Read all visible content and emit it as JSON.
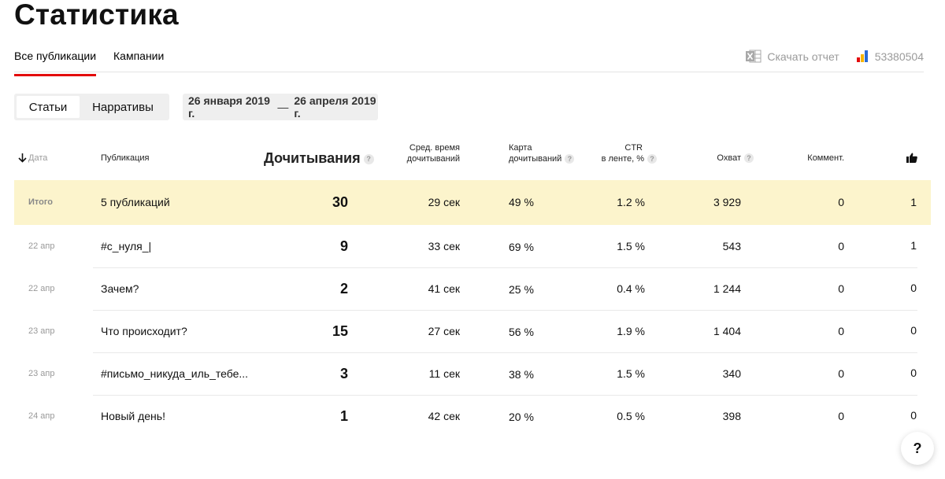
{
  "page_title": "Статистика",
  "tabs": [
    {
      "label": "Все публикации",
      "active": true
    },
    {
      "label": "Кампании",
      "active": false
    }
  ],
  "download_label": "Скачать отчет",
  "account_id": "53380504",
  "content_type": {
    "options": [
      "Статьи",
      "Нарративы"
    ],
    "selected": "Статьи"
  },
  "date_range": {
    "from": "26 января 2019 г.",
    "separator": "—",
    "to": "26 апреля 2019 г."
  },
  "table": {
    "columns": {
      "date": "Дата",
      "publication": "Публикация",
      "reads": "Дочитывания",
      "avg_time_line1": "Сред. время",
      "avg_time_line2": "дочитываний",
      "map_line1": "Карта",
      "map_line2": "дочитываний",
      "ctr_line1": "CTR",
      "ctr_line2": "в ленте, %",
      "reach": "Охват",
      "comments": "Коммент."
    },
    "summary": {
      "label": "Итого",
      "publication": "5 публикаций",
      "reads": "30",
      "avg_time": "29 сек",
      "map": "49 %",
      "ctr": "1.2 %",
      "reach": "3 929",
      "comments": "0",
      "likes": "1"
    },
    "rows": [
      {
        "date": "22 апр",
        "publication": "#с_нуля_|",
        "reads": "9",
        "avg_time": "33 сек",
        "map": "69 %",
        "ctr": "1.5 %",
        "reach": "543",
        "comments": "0",
        "likes": "1"
      },
      {
        "date": "22 апр",
        "publication": "Зачем?",
        "reads": "2",
        "avg_time": "41 сек",
        "map": "25 %",
        "ctr": "0.4 %",
        "reach": "1 244",
        "comments": "0",
        "likes": "0"
      },
      {
        "date": "23 апр",
        "publication": "Что происходит?",
        "reads": "15",
        "avg_time": "27 сек",
        "map": "56 %",
        "ctr": "1.9 %",
        "reach": "1 404",
        "comments": "0",
        "likes": "0"
      },
      {
        "date": "23 апр",
        "publication": "#письмо_никуда_иль_тебе...",
        "reads": "3",
        "avg_time": "11 сек",
        "map": "38 %",
        "ctr": "1.5 %",
        "reach": "340",
        "comments": "0",
        "likes": "0"
      },
      {
        "date": "24 апр",
        "publication": "Новый день!",
        "reads": "1",
        "avg_time": "42 сек",
        "map": "20 %",
        "ctr": "0.5 %",
        "reach": "398",
        "comments": "0",
        "likes": "0"
      }
    ]
  },
  "help_button": "?",
  "help_icon_glyph": "?",
  "colors": {
    "accent_red": "#e30b0b",
    "summary_bg": "#fcf4cc",
    "muted_text": "#9a9a9a",
    "control_bg": "#efefef"
  },
  "icons": {
    "sort": "arrow-down-icon",
    "download": "excel-icon",
    "account": "bar-chart-icon",
    "likes": "thumbs-up-icon",
    "help": "question-circle-icon"
  }
}
